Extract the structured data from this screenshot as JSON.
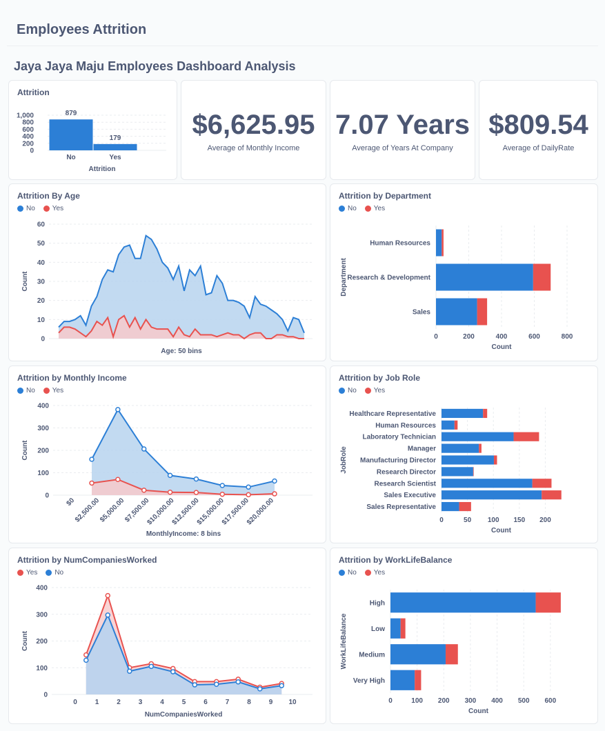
{
  "page": {
    "title": "Employees Attrition"
  },
  "dashboard": {
    "title": "Jaya Jaya Maju Employees Dashboard Analysis"
  },
  "colors": {
    "no": "#2c7fd6",
    "yes": "#e8524f",
    "no_fill": "#b7d3ef",
    "yes_fill": "#f7c9cb",
    "text": "#4c5773",
    "grid": "#e9ecef"
  },
  "legend": {
    "no": "No",
    "yes": "Yes"
  },
  "scalars": [
    {
      "value": "$6,625.95",
      "label": "Average of Monthly Income"
    },
    {
      "value": "7.07 Years",
      "label": "Average of Years At Company"
    },
    {
      "value": "$809.54",
      "label": "Average of DailyRate"
    }
  ],
  "cards": {
    "attrition": "Attrition",
    "age": "Attrition By Age",
    "department": "Attrition by Department",
    "income": "Attrition by Monthly Income",
    "jobrole": "Attrition by Job Role",
    "numcompanies": "Attrition by NumCompaniesWorked",
    "worklife": "Attrition by WorkLifeBalance"
  },
  "chart_data": [
    {
      "id": "attrition",
      "type": "bar",
      "categories": [
        "No",
        "Yes"
      ],
      "values": [
        879,
        179
      ],
      "xlabel": "Attrition",
      "yticks": [
        "1,000",
        "800",
        "600",
        "400",
        "200",
        "0"
      ],
      "ylim": [
        0,
        1000
      ]
    },
    {
      "id": "age",
      "type": "area",
      "xlabel": "Age: 50 bins",
      "ylabel": "Count",
      "ylim": [
        0,
        60
      ],
      "yticks": [
        0,
        10,
        20,
        30,
        40,
        50,
        60
      ],
      "series": [
        {
          "name": "No",
          "values": [
            6,
            9,
            9,
            10,
            12,
            7,
            17,
            22,
            31,
            36,
            35,
            44,
            48,
            49,
            42,
            42,
            54,
            52,
            47,
            40,
            37,
            31,
            38,
            25,
            36,
            33,
            38,
            23,
            24,
            33,
            29,
            20,
            20,
            19,
            17,
            11,
            22,
            18,
            17,
            15,
            13,
            10,
            4,
            11,
            10,
            3
          ]
        },
        {
          "name": "Yes",
          "values": [
            3,
            6,
            6,
            5,
            3,
            1,
            4,
            9,
            7,
            11,
            1,
            10,
            12,
            6,
            11,
            5,
            10,
            6,
            5,
            5,
            5,
            1,
            6,
            2,
            1,
            5,
            2,
            2,
            2,
            1,
            2,
            3,
            2,
            2,
            0,
            2,
            3,
            3,
            0,
            0,
            2,
            2,
            1,
            1,
            0,
            0
          ]
        }
      ]
    },
    {
      "id": "department",
      "type": "bar",
      "orientation": "horizontal",
      "categories": [
        "Human Resources",
        "Research & Development",
        "Sales"
      ],
      "series": [
        {
          "name": "No",
          "values": [
            35,
            593,
            251
          ]
        },
        {
          "name": "Yes",
          "values": [
            11,
            107,
            61
          ]
        }
      ],
      "xlabel": "Count",
      "ylabel": "Department",
      "xlim": [
        0,
        800
      ],
      "xticks": [
        0,
        200,
        400,
        600,
        800
      ]
    },
    {
      "id": "income",
      "type": "area",
      "xlabel": "MonthlyIncome: 8 bins",
      "ylabel": "Count",
      "ylim": [
        0,
        400
      ],
      "yticks": [
        0,
        100,
        200,
        300,
        400
      ],
      "xticks": [
        "$0",
        "$2,500.00",
        "$5,000.00",
        "$7,500.00",
        "$10,000.00",
        "$12,500.00",
        "$15,000.00",
        "$17,500.00",
        "$20,000.00"
      ],
      "series": [
        {
          "name": "No",
          "values": [
            160,
            382,
            206,
            88,
            72,
            43,
            36,
            63
          ]
        },
        {
          "name": "Yes",
          "values": [
            54,
            70,
            22,
            13,
            12,
            4,
            2,
            6
          ]
        }
      ]
    },
    {
      "id": "jobrole",
      "type": "bar",
      "orientation": "horizontal",
      "categories": [
        "Healthcare Representative",
        "Human Resources",
        "Laboratory Technician",
        "Manager",
        "Manufacturing Director",
        "Research Director",
        "Research Scientist",
        "Sales Executive",
        "Sales Representative"
      ],
      "series": [
        {
          "name": "No",
          "values": [
            80,
            25,
            139,
            72,
            101,
            61,
            175,
            193,
            34
          ]
        },
        {
          "name": "Yes",
          "values": [
            8,
            6,
            49,
            5,
            6,
            1,
            37,
            38,
            23
          ]
        }
      ],
      "xlabel": "Count",
      "ylabel": "JobRole",
      "xlim": [
        0,
        230
      ],
      "xticks": [
        0,
        50,
        100,
        150,
        200
      ]
    },
    {
      "id": "numcompanies",
      "type": "area",
      "xlabel": "NumCompaniesWorked",
      "ylabel": "Count",
      "ylim": [
        0,
        400
      ],
      "yticks": [
        0,
        100,
        200,
        300,
        400
      ],
      "xlim": [
        -0.5,
        10.5
      ],
      "xticks": [
        0,
        1,
        2,
        3,
        4,
        5,
        6,
        7,
        8,
        9,
        10
      ],
      "x": [
        0.5,
        1.5,
        2.5,
        3.5,
        4.5,
        5.5,
        6.5,
        7.5,
        8.5,
        9.5
      ],
      "series": [
        {
          "name": "Yes",
          "values": [
            148,
            370,
            100,
            115,
            97,
            48,
            48,
            57,
            27,
            41
          ]
        },
        {
          "name": "No",
          "values": [
            128,
            297,
            87,
            105,
            85,
            36,
            38,
            47,
            21,
            33
          ]
        }
      ]
    },
    {
      "id": "worklife",
      "type": "bar",
      "orientation": "horizontal",
      "categories": [
        "High",
        "Low",
        "Medium",
        "Very High"
      ],
      "series": [
        {
          "name": "No",
          "values": [
            545,
            38,
            207,
            91
          ]
        },
        {
          "name": "Yes",
          "values": [
            94,
            18,
            46,
            24
          ]
        }
      ],
      "xlabel": "Count",
      "ylabel": "WorkLifeBalance",
      "xlim": [
        0,
        660
      ],
      "xticks": [
        0,
        100,
        200,
        300,
        400,
        500,
        600
      ]
    }
  ]
}
